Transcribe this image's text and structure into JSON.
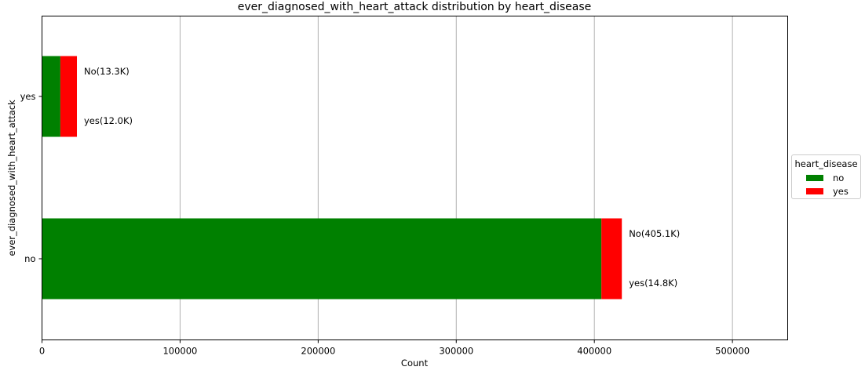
{
  "chart_data": {
    "type": "bar",
    "orientation": "horizontal",
    "stacked": true,
    "title": "ever_diagnosed_with_heart_attack distribution by heart_disease",
    "xlabel": "Count",
    "ylabel": "ever_diagnosed_with_heart_attack",
    "xlim": [
      0,
      540000
    ],
    "x_ticks": [
      "0",
      "100000",
      "200000",
      "300000",
      "400000",
      "500000"
    ],
    "x_tick_values": [
      0,
      100000,
      200000,
      300000,
      400000,
      500000
    ],
    "categories": [
      "no",
      "yes"
    ],
    "series": [
      {
        "name": "no",
        "color": "#008000",
        "values": [
          405100,
          13300
        ]
      },
      {
        "name": "yes",
        "color": "#ff0000",
        "values": [
          14800,
          12000
        ]
      }
    ],
    "annotations": [
      {
        "category": "no",
        "upper": "No(405.1K)",
        "lower": "yes(14.8K)"
      },
      {
        "category": "yes",
        "upper": "No(13.3K)",
        "lower": "yes(12.0K)"
      }
    ],
    "grid": "x",
    "legend": {
      "title": "heart_disease",
      "placement": "right-center"
    }
  }
}
